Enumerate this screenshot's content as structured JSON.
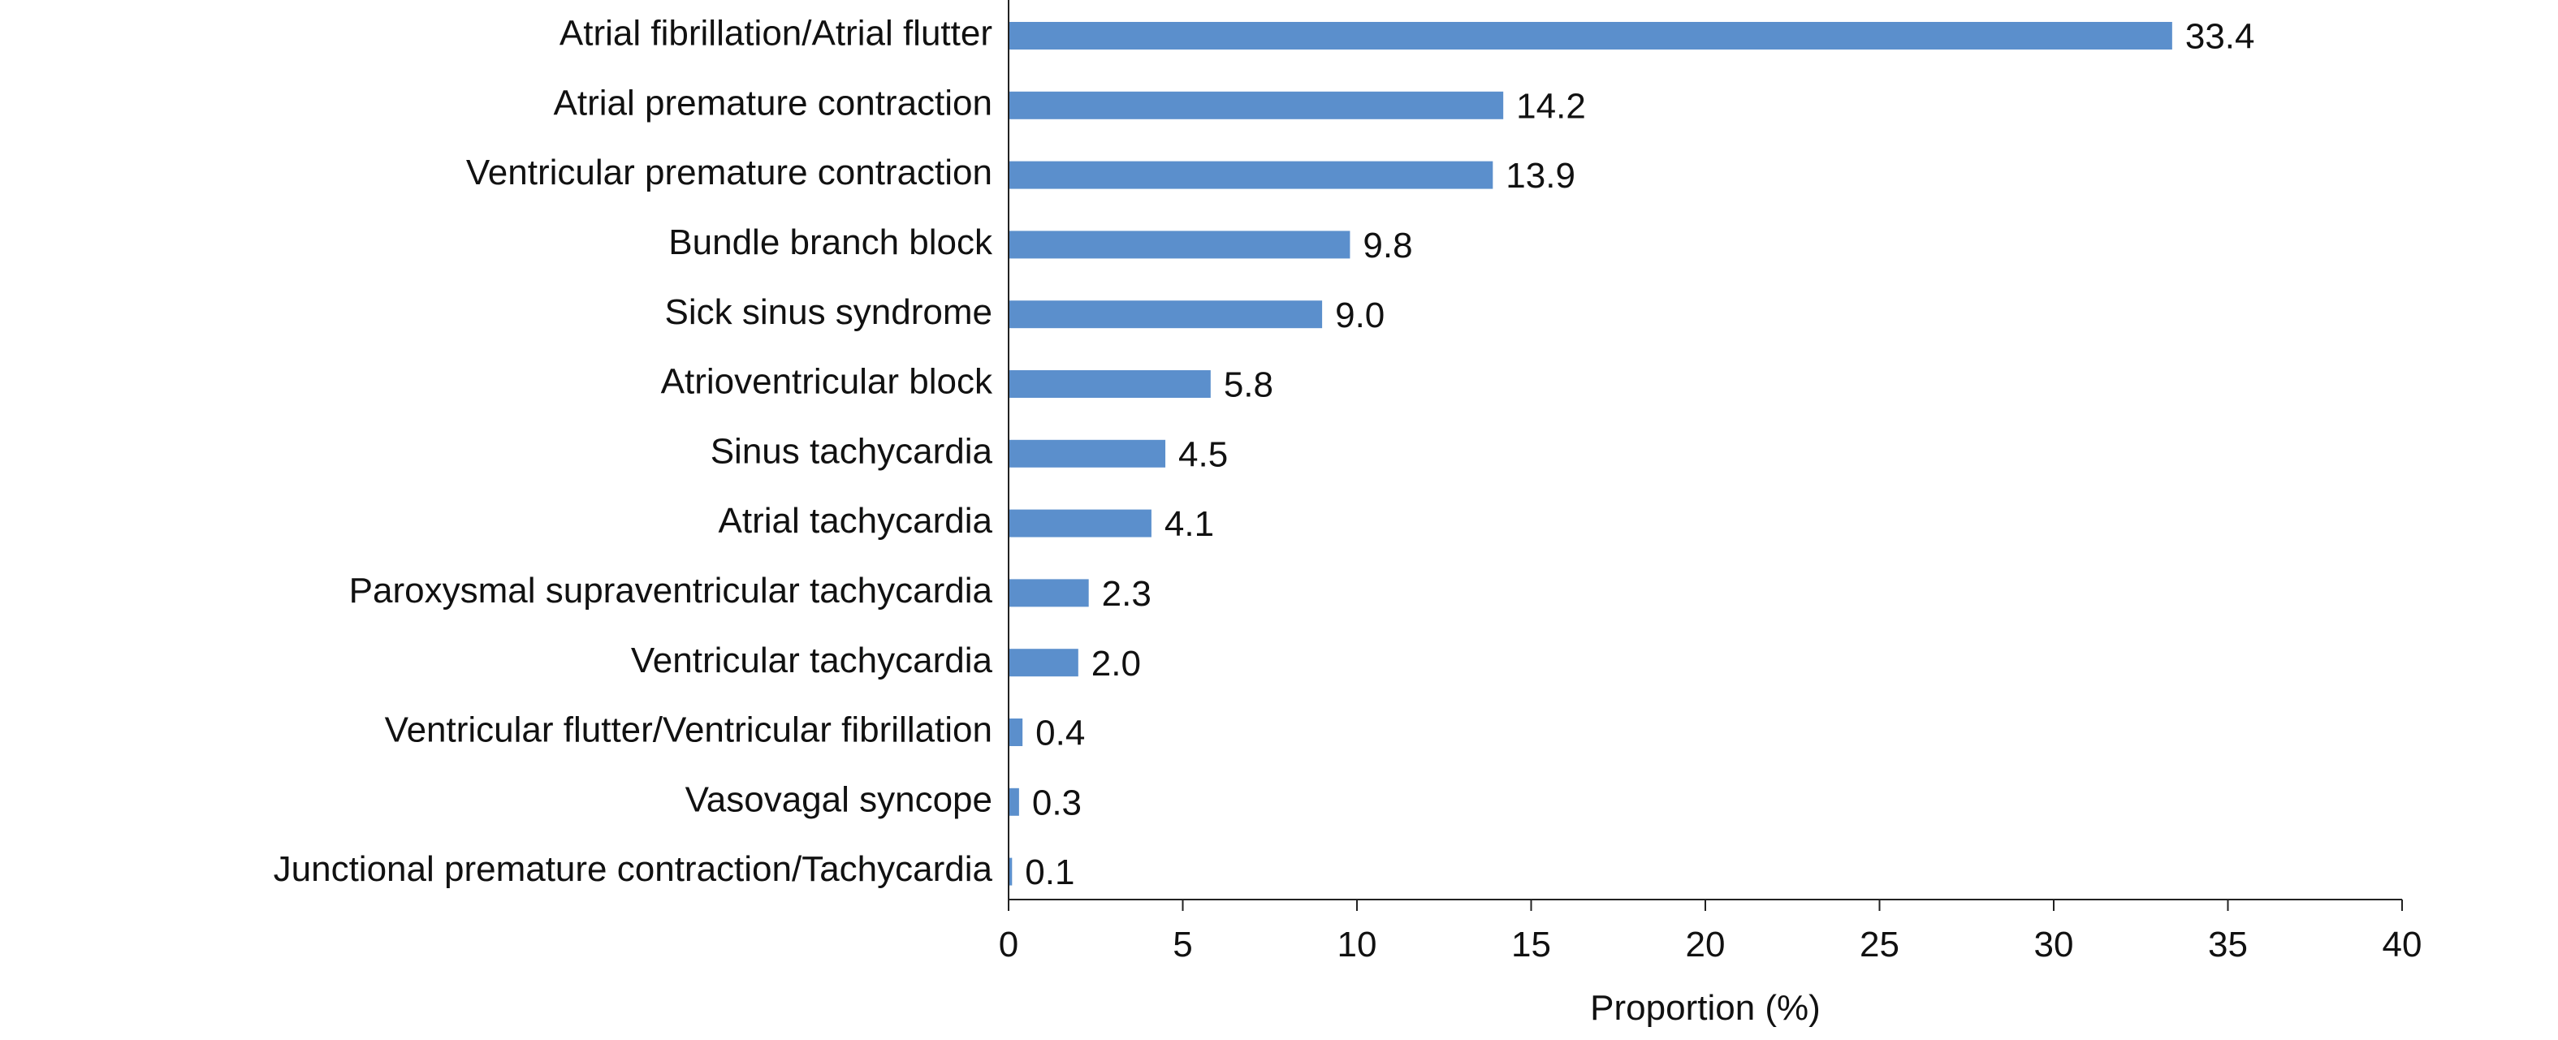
{
  "chart_data": {
    "type": "bar",
    "orientation": "horizontal",
    "title": "",
    "xlabel": "Proportion (%)",
    "ylabel": "",
    "xlim": [
      0,
      40
    ],
    "xticks": [
      0,
      5,
      10,
      15,
      20,
      25,
      30,
      35,
      40
    ],
    "grid": false,
    "legend": "none",
    "bar_color": "#5b8fcc",
    "categories": [
      "Atrial fibrillation/Atrial flutter",
      "Atrial premature contraction",
      "Ventricular premature contraction",
      "Bundle branch block",
      "Sick sinus syndrome",
      "Atrioventricular block",
      "Sinus tachycardia",
      "Atrial tachycardia",
      "Paroxysmal supraventricular tachycardia",
      "Ventricular tachycardia",
      "Ventricular flutter/Ventricular fibrillation",
      "Vasovagal syncope",
      "Junctional premature contraction/Tachycardia"
    ],
    "values": [
      33.4,
      14.2,
      13.9,
      9.8,
      9.0,
      5.8,
      4.5,
      4.1,
      2.3,
      2.0,
      0.4,
      0.3,
      0.1
    ],
    "data_labels": [
      "33.4",
      "14.2",
      "13.9",
      "9.8",
      "9.0",
      "5.8",
      "4.5",
      "4.1",
      "2.3",
      "2.0",
      "0.4",
      "0.3",
      "0.1"
    ]
  }
}
